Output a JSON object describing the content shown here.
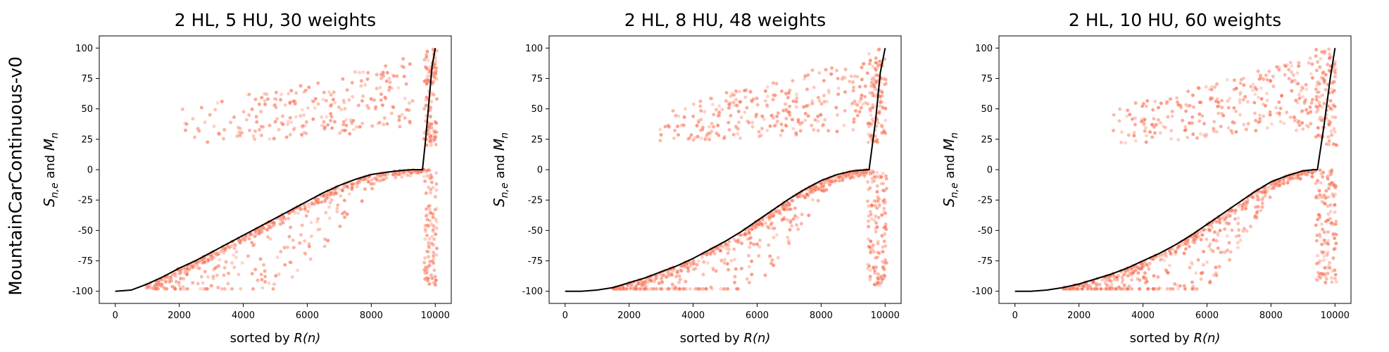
{
  "figure": {
    "row_label": "MountainCarContinuous-v0"
  },
  "colors": {
    "scatter": "#f96a4c",
    "line": "#000000",
    "axes": "#000000"
  },
  "chart_data": [
    {
      "type": "scatter",
      "title": "2 HL, 5 HU, 30 weights",
      "xlabel_prefix": "sorted by ",
      "xlabel_math": "R(n)",
      "ylabel_base": "S",
      "ylabel_sub": "n,e",
      "ylabel_mid": " and ",
      "ylabel_base2": "M",
      "ylabel_sub2": "n",
      "xlim": [
        -500,
        10500
      ],
      "ylim": [
        -110,
        110
      ],
      "xticks": [
        0,
        2000,
        4000,
        6000,
        8000,
        10000
      ],
      "yticks": [
        -100,
        -75,
        -50,
        -25,
        0,
        25,
        50,
        75,
        100
      ],
      "series": [
        {
          "kind": "line",
          "x": [
            0,
            500,
            1000,
            1500,
            2000,
            2500,
            3000,
            3500,
            4000,
            4500,
            5000,
            5500,
            6000,
            6500,
            7000,
            7500,
            8000,
            8500,
            9000,
            9300,
            9600,
            9700,
            9800,
            9900,
            10000
          ],
          "y": [
            -100,
            -99,
            -94,
            -88,
            -81,
            -75,
            -68,
            -61,
            -54,
            -47,
            -40,
            -33,
            -26,
            -19,
            -13,
            -8,
            -4,
            -2,
            -0.5,
            0,
            0,
            25,
            55,
            85,
            100
          ]
        },
        {
          "kind": "scatter-band",
          "x_start": 950,
          "x_end": 9650,
          "y_start": -100,
          "y_end": 0,
          "spread_min": 3,
          "spread_max": 60,
          "count": 520
        },
        {
          "kind": "scatter-cluster",
          "x_range": [
            2100,
            9300
          ],
          "y_range": [
            20,
            95
          ],
          "count": 230
        },
        {
          "kind": "scatter-column",
          "x_range": [
            9650,
            10050
          ],
          "y_range": [
            -95,
            100
          ],
          "count": 220
        }
      ]
    },
    {
      "type": "scatter",
      "title": "2 HL, 8 HU, 48 weights",
      "xlabel_prefix": "sorted by ",
      "xlabel_math": "R(n)",
      "ylabel_base": "S",
      "ylabel_sub": "n,e",
      "ylabel_mid": " and ",
      "ylabel_base2": "M",
      "ylabel_sub2": "n",
      "xlim": [
        -500,
        10500
      ],
      "ylim": [
        -110,
        110
      ],
      "xticks": [
        0,
        2000,
        4000,
        6000,
        8000,
        10000
      ],
      "yticks": [
        -100,
        -75,
        -50,
        -25,
        0,
        25,
        50,
        75,
        100
      ],
      "series": [
        {
          "kind": "line",
          "x": [
            0,
            500,
            1000,
            1500,
            2000,
            2500,
            3000,
            3500,
            4000,
            4500,
            5000,
            5500,
            6000,
            6500,
            7000,
            7500,
            8000,
            8500,
            9000,
            9450,
            9500,
            9700,
            9850,
            10000
          ],
          "y": [
            -100,
            -100,
            -99,
            -97,
            -93,
            -89,
            -84,
            -79,
            -73,
            -66,
            -59,
            -51,
            -42,
            -33,
            -24,
            -16,
            -9,
            -4,
            -1,
            0,
            0,
            40,
            80,
            100
          ]
        },
        {
          "kind": "scatter-band",
          "x_start": 1500,
          "x_end": 9450,
          "y_start": -100,
          "y_end": 0,
          "spread_min": 3,
          "spread_max": 60,
          "count": 560
        },
        {
          "kind": "scatter-cluster",
          "x_range": [
            2900,
            9400
          ],
          "y_range": [
            22,
            95
          ],
          "count": 260
        },
        {
          "kind": "scatter-column",
          "x_range": [
            9450,
            10050
          ],
          "y_range": [
            -95,
            100
          ],
          "count": 240
        }
      ]
    },
    {
      "type": "scatter",
      "title": "2 HL, 10 HU, 60 weights",
      "xlabel_prefix": "sorted by ",
      "xlabel_math": "R(n)",
      "ylabel_base": "S",
      "ylabel_sub": "n,e",
      "ylabel_mid": " and ",
      "ylabel_base2": "M",
      "ylabel_sub2": "n",
      "xlim": [
        -500,
        10500
      ],
      "ylim": [
        -110,
        110
      ],
      "xticks": [
        0,
        2000,
        4000,
        6000,
        8000,
        10000
      ],
      "yticks": [
        -100,
        -75,
        -50,
        -25,
        0,
        25,
        50,
        75,
        100
      ],
      "series": [
        {
          "kind": "line",
          "x": [
            0,
            500,
            1000,
            1500,
            2000,
            2500,
            3000,
            3500,
            4000,
            4500,
            5000,
            5500,
            6000,
            6500,
            7000,
            7500,
            8000,
            8500,
            9000,
            9350,
            9450,
            9650,
            9850,
            10000
          ],
          "y": [
            -100,
            -100,
            -99,
            -97,
            -94,
            -90,
            -86,
            -81,
            -75,
            -69,
            -62,
            -54,
            -45,
            -36,
            -27,
            -18,
            -10,
            -5,
            -1,
            0,
            0,
            35,
            75,
            100
          ]
        },
        {
          "kind": "scatter-band",
          "x_start": 1500,
          "x_end": 9400,
          "y_start": -100,
          "y_end": 0,
          "spread_min": 3,
          "spread_max": 60,
          "count": 560
        },
        {
          "kind": "scatter-cluster",
          "x_range": [
            3000,
            9300
          ],
          "y_range": [
            22,
            92
          ],
          "count": 260
        },
        {
          "kind": "scatter-column",
          "x_range": [
            9400,
            10050
          ],
          "y_range": [
            -95,
            100
          ],
          "count": 240
        }
      ]
    }
  ]
}
